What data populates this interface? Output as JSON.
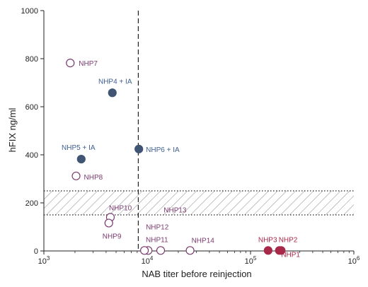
{
  "chart_data": {
    "type": "scatter",
    "title": "",
    "xlabel": "NAB titer before reinjection",
    "ylabel": "hFIX ng/ml",
    "x_scale": "log",
    "xlim": [
      1000,
      1000000
    ],
    "ylim": [
      0,
      1000
    ],
    "x_ticks": [
      1000,
      10000,
      100000,
      1000000
    ],
    "x_tick_labels": [
      {
        "base": "10",
        "exp": "3"
      },
      {
        "base": "10",
        "exp": "4"
      },
      {
        "base": "10",
        "exp": "5"
      },
      {
        "base": "10",
        "exp": "6"
      }
    ],
    "y_ticks": [
      0,
      200,
      400,
      600,
      800,
      1000
    ],
    "y_tick_labels": [
      "0",
      "200",
      "400",
      "600",
      "800",
      "1000"
    ],
    "grid": false,
    "reference_line_x": 8200,
    "shaded_band_y": [
      150,
      250
    ],
    "colors": {
      "open_marker": "#7a3a6e",
      "filled_blue": "#3f5573",
      "filled_red": "#a8284a",
      "label_blue": "#3f5f8f",
      "label_purple": "#7a3a6e",
      "label_red": "#a8284a"
    },
    "points": [
      {
        "label": "NHP7",
        "x": 1800,
        "y": 782,
        "style": "open"
      },
      {
        "label": "NHP4 + IA",
        "x": 4600,
        "y": 658,
        "style": "filled_blue"
      },
      {
        "label": "NHP5 + IA",
        "x": 2300,
        "y": 382,
        "style": "filled_blue"
      },
      {
        "label": "NHP6 + IA",
        "x": 8300,
        "y": 424,
        "style": "filled_blue"
      },
      {
        "label": "NHP8",
        "x": 2050,
        "y": 312,
        "style": "open"
      },
      {
        "label": "NHP10",
        "x": 4400,
        "y": 140,
        "style": "open"
      },
      {
        "label": "NHP9",
        "x": 4250,
        "y": 116,
        "style": "open"
      },
      {
        "label": "NHP13",
        "x": 10200,
        "y": 2,
        "style": "open"
      },
      {
        "label": "NHP12",
        "x": 9400,
        "y": 2,
        "style": "open"
      },
      {
        "label": "NHP11",
        "x": 13500,
        "y": 2,
        "style": "open"
      },
      {
        "label": "NHP14",
        "x": 26000,
        "y": 2,
        "style": "open"
      },
      {
        "label": "NHP3",
        "x": 148000,
        "y": 2,
        "style": "filled_red"
      },
      {
        "label": "NHP2",
        "x": 190000,
        "y": 2,
        "style": "filled_red"
      },
      {
        "label": "NHP1",
        "x": 198000,
        "y": 2,
        "style": "filled_red"
      }
    ]
  }
}
